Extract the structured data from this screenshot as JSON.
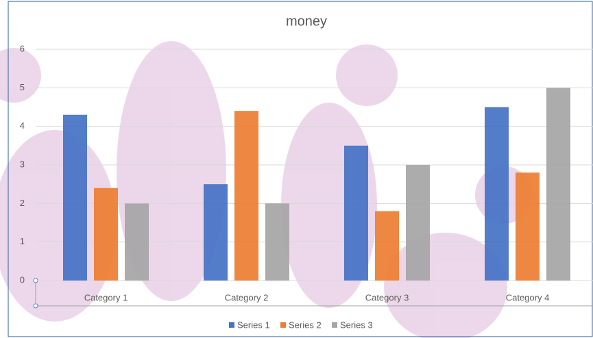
{
  "chart_data": {
    "type": "bar",
    "title": "money",
    "categories": [
      "Category 1",
      "Category 2",
      "Category 3",
      "Category 4"
    ],
    "series": [
      {
        "name": "Series 1",
        "color": "#4472c4",
        "values": [
          4.3,
          2.5,
          3.5,
          4.5
        ]
      },
      {
        "name": "Series 2",
        "color": "#ed7d31",
        "values": [
          2.4,
          4.4,
          1.8,
          2.8
        ]
      },
      {
        "name": "Series 3",
        "color": "#a5a5a5",
        "values": [
          2,
          2,
          3,
          5
        ]
      }
    ],
    "ylim": [
      0,
      6
    ],
    "yticks": [
      0,
      1,
      2,
      3,
      4,
      5,
      6
    ],
    "grid": true,
    "legend": "bottom"
  }
}
